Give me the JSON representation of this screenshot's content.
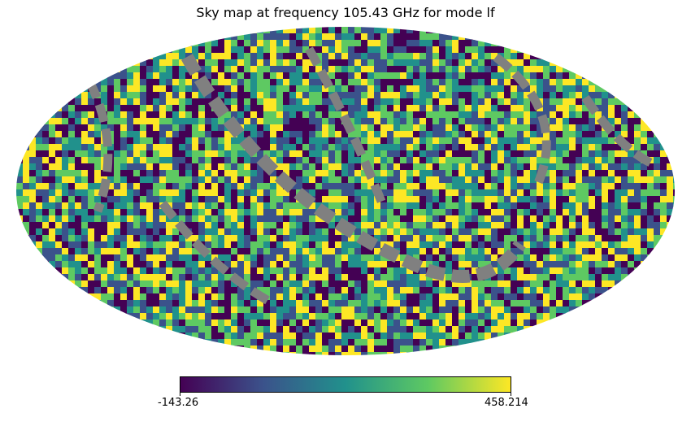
{
  "chart_data": {
    "type": "heatmap",
    "projection": "mollweide",
    "title": "Sky map at frequency 105.43 GHz for mode lf",
    "colormap": "viridis",
    "colorbar": {
      "min": -143.26,
      "max": 458.214,
      "min_label": "-143.26",
      "max_label": "458.214"
    },
    "masked_color": "#808080",
    "colors": {
      "viridis": [
        "#440154",
        "#3b528b",
        "#21918c",
        "#5ec962",
        "#fde725"
      ]
    }
  }
}
